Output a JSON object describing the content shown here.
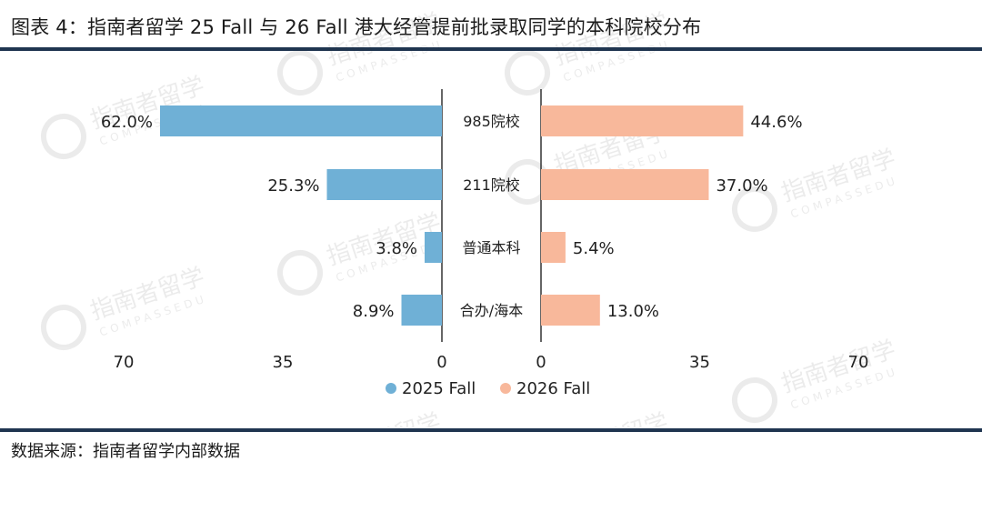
{
  "title": "图表 4：指南者留学 25 Fall 与 26 Fall 港大经管提前批录取同学的本科院校分布",
  "source": "数据来源：指南者留学内部数据",
  "watermark": {
    "text": "指南者留学",
    "sub": "COMPASSEDU"
  },
  "chart_data": {
    "type": "bar",
    "orientation": "horizontal-butterfly",
    "categories": [
      "985院校",
      "211院校",
      "普通本科",
      "合办/海本"
    ],
    "series": [
      {
        "name": "2025 Fall",
        "values": [
          62.0,
          25.3,
          3.8,
          8.9
        ],
        "labels": [
          "62.0%",
          "25.3%",
          "3.8%",
          "8.9%"
        ],
        "color": "#6fb0d6"
      },
      {
        "name": "2026 Fall",
        "values": [
          44.6,
          37.0,
          5.4,
          13.0
        ],
        "labels": [
          "44.6%",
          "37.0%",
          "5.4%",
          "13.0%"
        ],
        "color": "#f8b89b"
      }
    ],
    "left_ticks": [
      "70",
      "35",
      "0"
    ],
    "right_ticks": [
      "0",
      "35",
      "70"
    ],
    "xlim": [
      0,
      70
    ],
    "legend_position": "bottom-center"
  }
}
